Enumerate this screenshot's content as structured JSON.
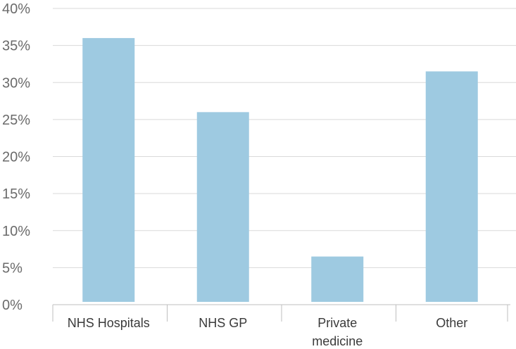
{
  "chart_data": {
    "type": "bar",
    "categories": [
      "NHS Hospitals",
      "NHS GP",
      "Private medicine",
      "Other"
    ],
    "category_label_lines": [
      [
        "NHS Hospitals"
      ],
      [
        "NHS GP"
      ],
      [
        "Private",
        "medicine"
      ],
      [
        "Other"
      ]
    ],
    "values": [
      36,
      26,
      6.5,
      31.5
    ],
    "ylim": [
      0,
      40
    ],
    "yticks": [
      0,
      5,
      10,
      15,
      20,
      25,
      30,
      35,
      40
    ],
    "ytick_labels": [
      "0%",
      "5%",
      "10%",
      "15%",
      "20%",
      "25%",
      "30%",
      "35%",
      "40%"
    ],
    "title": "",
    "xlabel": "",
    "ylabel": "",
    "grid": true,
    "bar_color": "#9ecae1"
  }
}
